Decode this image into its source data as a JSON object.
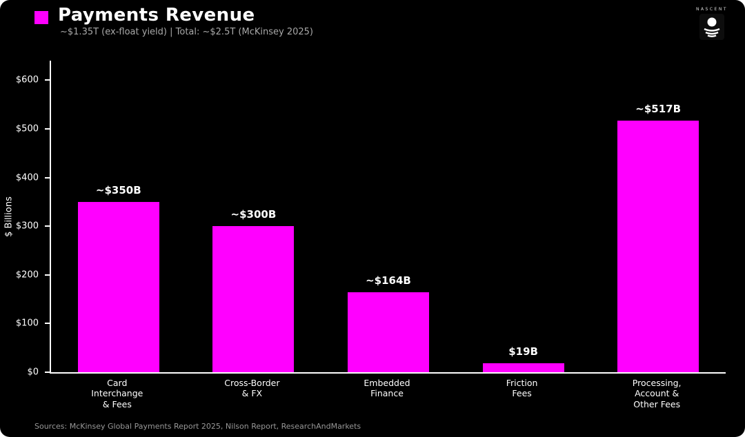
{
  "header": {
    "title": "Payments Revenue",
    "subtitle": "~$1.35T (ex-float yield)  |  Total: ~$2.5T (McKinsey 2025)",
    "legend_color": "#ff00ff"
  },
  "logo": {
    "brand": "NASCENT"
  },
  "footer": {
    "sources": "Sources: McKinsey Global Payments Report 2025, Nilson Report, ResearchAndMarkets"
  },
  "chart_data": {
    "type": "bar",
    "title": "Payments Revenue",
    "subtitle": "~$1.35T (ex-float yield) | Total: ~$2.5T (McKinsey 2025)",
    "xlabel": "",
    "ylabel": "$ Billions",
    "categories": [
      "Card\nInterchange\n& Fees",
      "Cross-Border\n& FX",
      "Embedded\nFinance",
      "Friction\nFees",
      "Processing,\nAccount &\nOther Fees"
    ],
    "values": [
      350,
      300,
      164,
      19,
      517
    ],
    "value_labels": [
      "~$350B",
      "~$300B",
      "~$164B",
      "$19B",
      "~$517B"
    ],
    "bar_color": "#ff00ff",
    "background": "#000000",
    "ylim": [
      0,
      640
    ],
    "yticks": [
      0,
      100,
      200,
      300,
      400,
      500,
      600
    ],
    "ytick_labels": [
      "$0",
      "$100",
      "$200",
      "$300",
      "$400",
      "$500",
      "$600"
    ],
    "grid": false,
    "legend_position": "none"
  }
}
